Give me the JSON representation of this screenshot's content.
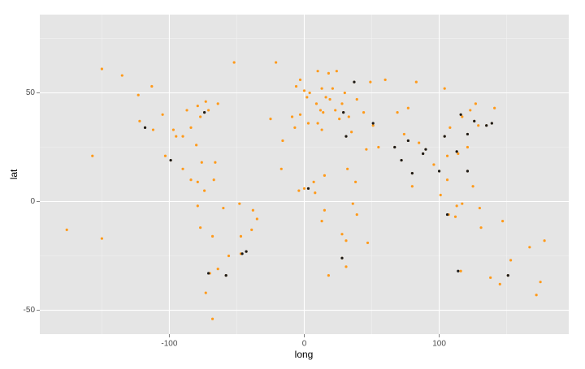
{
  "chart_data": {
    "type": "scatter",
    "x_label": "long",
    "y_label": "lat",
    "xlim": [
      -196,
      196
    ],
    "ylim": [
      -61,
      86
    ],
    "xticks": [
      -100,
      0,
      100
    ],
    "yticks": [
      -50,
      0,
      50
    ],
    "grid": true,
    "series": [
      {
        "color": "#ff9a1a",
        "x": [
          -9,
          -3,
          2,
          0,
          4,
          13,
          21,
          12,
          16,
          19,
          23,
          28,
          30,
          37,
          24,
          18,
          10,
          -6,
          -3,
          9,
          14,
          26,
          29,
          33,
          39,
          44,
          49,
          60,
          35,
          31,
          -7,
          3,
          10,
          13,
          -17,
          -4,
          3,
          7,
          0,
          8,
          15,
          32,
          38,
          36,
          39,
          28,
          31,
          28,
          18,
          31,
          47,
          15,
          13,
          51,
          46,
          55,
          67,
          74,
          77,
          72,
          80,
          88,
          85,
          90,
          80,
          96,
          100,
          106,
          106,
          101,
          107,
          112,
          121,
          125,
          121,
          121,
          114,
          113,
          104,
          108,
          116,
          117,
          123,
          126,
          127,
          129,
          135,
          139,
          141,
          69,
          77,
          83,
          104,
          113,
          117,
          130,
          151,
          145,
          153,
          138,
          116,
          131,
          175,
          172,
          178,
          147,
          -123,
          -122,
          -118,
          -112,
          -105,
          -97,
          -95,
          -90,
          -87,
          -84,
          -80,
          -77,
          -74,
          -71,
          -79,
          -73,
          -64,
          -113,
          -135,
          -150,
          -99,
          -103,
          -90,
          -84,
          -79,
          -76,
          -66,
          -157,
          -74,
          -67,
          -79,
          -77,
          -68,
          -70,
          -58,
          -64,
          -56,
          -47,
          -43,
          -39,
          -35,
          -38,
          -48,
          -60,
          -47,
          -73,
          -68,
          -21,
          -52,
          -176,
          -150,
          167,
          -25,
          -16
        ],
        "y": [
          39,
          40,
          48,
          51,
          50,
          52,
          52,
          42,
          48,
          47,
          42,
          45,
          50,
          55,
          60,
          59,
          60,
          53,
          56,
          45,
          41,
          38,
          41,
          39,
          47,
          41,
          55,
          56,
          32,
          30,
          34,
          36,
          36,
          33,
          15,
          5,
          6,
          9,
          6,
          4,
          12,
          15,
          9,
          -1,
          -6,
          -15,
          -18,
          -26,
          -34,
          -30,
          -19,
          -4,
          -9,
          35,
          24,
          25,
          25,
          31,
          28,
          19,
          13,
          22,
          27,
          24,
          7,
          17,
          14,
          10,
          21,
          3,
          -6,
          -7,
          14,
          7,
          25,
          31,
          22,
          23,
          30,
          34,
          40,
          39,
          42,
          37,
          45,
          35,
          35,
          36,
          43,
          41,
          43,
          55,
          52,
          -2,
          -1,
          -3,
          -34,
          -38,
          -27,
          -35,
          -32,
          -12,
          -37,
          -43,
          -18,
          -9,
          49,
          37,
          34,
          33,
          40,
          33,
          30,
          30,
          42,
          34,
          26,
          39,
          41,
          42,
          44,
          46,
          45,
          53,
          58,
          61,
          19,
          21,
          15,
          10,
          9,
          18,
          18,
          21,
          5,
          10,
          -2,
          -12,
          -16,
          -33,
          -34,
          -31,
          -25,
          -24,
          -23,
          -13,
          -8,
          -4,
          -1,
          -3,
          -16,
          -42,
          -54,
          64,
          64,
          -13,
          -17,
          -21,
          38,
          28
        ]
      },
      {
        "color": "#1a1a1a",
        "x": [
          -118,
          -99,
          -74,
          -46,
          -58,
          -43,
          -71,
          31,
          3,
          28,
          37,
          29,
          51,
          67,
          77,
          72,
          80,
          88,
          90,
          100,
          106,
          121,
          121,
          116,
          113,
          104,
          126,
          139,
          135,
          151,
          114
        ],
        "y": [
          34,
          19,
          41,
          -24,
          -34,
          -23,
          -33,
          30,
          6,
          -26,
          55,
          41,
          36,
          25,
          28,
          19,
          13,
          22,
          24,
          14,
          -6,
          14,
          31,
          40,
          23,
          30,
          37,
          36,
          35,
          -34,
          -32
        ]
      }
    ]
  }
}
